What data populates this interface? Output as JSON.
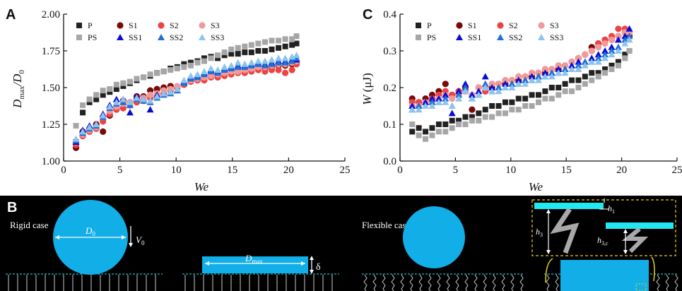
{
  "panels": {
    "a": "A",
    "b": "B",
    "c": "C"
  },
  "colors": {
    "P": "#222222",
    "PS": "#a6a6a6",
    "S1": "#7a0a0a",
    "S2": "#ec4444",
    "S3": "#f29a9a",
    "SS1": "#0a0ad6",
    "SS2": "#1e6fd6",
    "SS3": "#8cc4ef",
    "drop": "#12aee8",
    "plate": "#22e8f2",
    "spring": "#a8a8a8",
    "dash": "#e8d21a"
  },
  "chart_data": [
    {
      "id": "A",
      "type": "scatter",
      "xlabel": "We",
      "ylabel_main": "D",
      "ylabel_sub": "max",
      "ylabel_mid": "/D",
      "ylabel_sub2": "0",
      "xlim": [
        0,
        25
      ],
      "ylim": [
        1.0,
        2.0
      ],
      "xticks": [
        "0",
        "5",
        "10",
        "15",
        "20",
        "25"
      ],
      "yticks": [
        "1.00",
        "1.25",
        "1.50",
        "1.75",
        "2.00"
      ],
      "legend_layout": "2 rows x 4 columns, top-left",
      "legend": [
        {
          "key": "P",
          "marker": "square",
          "label": "P"
        },
        {
          "key": "S1",
          "marker": "circle",
          "label": "S1"
        },
        {
          "key": "S2",
          "marker": "circle",
          "label": "S2"
        },
        {
          "key": "S3",
          "marker": "circle",
          "label": "S3"
        },
        {
          "key": "PS",
          "marker": "square",
          "label": "PS"
        },
        {
          "key": "SS1",
          "marker": "triangle",
          "label": "SS1"
        },
        {
          "key": "SS2",
          "marker": "triangle",
          "label": "SS2"
        },
        {
          "key": "SS3",
          "marker": "triangle",
          "label": "SS3"
        }
      ],
      "x": [
        1.1,
        1.7,
        2.3,
        2.9,
        3.5,
        4.1,
        4.7,
        5.3,
        5.9,
        6.5,
        7.1,
        7.7,
        8.3,
        8.9,
        9.5,
        10.1,
        10.7,
        11.3,
        11.9,
        12.5,
        13.1,
        13.7,
        14.3,
        14.9,
        15.5,
        16.1,
        16.7,
        17.3,
        17.9,
        18.5,
        19.1,
        19.7,
        20.3,
        20.7
      ],
      "series": [
        {
          "key": "P",
          "marker": "square",
          "values": [
            1.13,
            1.33,
            1.4,
            1.42,
            1.45,
            1.47,
            1.49,
            1.51,
            1.53,
            1.55,
            1.57,
            1.58,
            1.6,
            1.61,
            1.63,
            1.64,
            1.66,
            1.67,
            1.68,
            1.7,
            1.71,
            1.7,
            1.72,
            1.73,
            1.73,
            1.74,
            1.74,
            1.75,
            1.75,
            1.76,
            1.77,
            1.78,
            1.79,
            1.8
          ]
        },
        {
          "key": "PS",
          "marker": "square",
          "values": [
            1.24,
            1.38,
            1.42,
            1.45,
            1.48,
            1.49,
            1.52,
            1.53,
            1.54,
            1.56,
            1.57,
            1.59,
            1.6,
            1.61,
            1.62,
            1.63,
            1.64,
            1.65,
            1.67,
            1.68,
            1.7,
            1.72,
            1.74,
            1.76,
            1.77,
            1.78,
            1.79,
            1.8,
            1.81,
            1.82,
            1.82,
            1.83,
            1.83,
            1.85
          ]
        },
        {
          "key": "S1",
          "marker": "circle",
          "values": [
            1.09,
            1.2,
            1.22,
            1.25,
            1.2,
            1.31,
            1.36,
            1.41,
            1.4,
            1.44,
            1.44,
            1.48,
            1.49,
            1.5,
            1.51,
            1.5,
            1.52,
            1.55,
            1.56,
            1.57,
            1.59,
            1.58,
            1.6,
            1.61,
            1.62,
            1.62,
            1.63,
            1.64,
            1.63,
            1.64,
            1.65,
            1.65,
            1.66,
            1.66
          ]
        },
        {
          "key": "S2",
          "marker": "circle",
          "values": [
            1.11,
            1.17,
            1.2,
            1.22,
            1.27,
            1.32,
            1.35,
            1.36,
            1.38,
            1.4,
            1.41,
            1.43,
            1.45,
            1.46,
            1.48,
            1.5,
            1.52,
            1.54,
            1.55,
            1.55,
            1.57,
            1.57,
            1.58,
            1.59,
            1.6,
            1.6,
            1.61,
            1.62,
            1.61,
            1.62,
            1.62,
            1.6,
            1.62,
            1.66
          ]
        },
        {
          "key": "S3",
          "marker": "circle",
          "values": [
            1.13,
            1.18,
            1.21,
            1.23,
            1.3,
            1.34,
            1.37,
            1.39,
            1.4,
            1.42,
            1.43,
            1.45,
            1.46,
            1.48,
            1.49,
            1.51,
            1.53,
            1.55,
            1.56,
            1.57,
            1.58,
            1.59,
            1.6,
            1.61,
            1.61,
            1.62,
            1.63,
            1.64,
            1.64,
            1.65,
            1.66,
            1.66,
            1.67,
            1.68
          ]
        },
        {
          "key": "SS1",
          "marker": "triangle",
          "values": [
            1.13,
            1.21,
            1.24,
            1.25,
            1.32,
            1.38,
            1.42,
            1.42,
            1.33,
            1.44,
            1.42,
            1.35,
            1.45,
            1.46,
            1.47,
            1.48,
            1.54,
            1.57,
            1.58,
            1.6,
            1.62,
            1.61,
            1.63,
            1.64,
            1.65,
            1.65,
            1.66,
            1.67,
            1.66,
            1.67,
            1.68,
            1.68,
            1.69,
            1.69
          ]
        },
        {
          "key": "SS2",
          "marker": "triangle",
          "values": [
            1.14,
            1.19,
            1.22,
            1.24,
            1.3,
            1.36,
            1.39,
            1.4,
            1.38,
            1.42,
            1.41,
            1.4,
            1.43,
            1.45,
            1.46,
            1.48,
            1.53,
            1.56,
            1.57,
            1.59,
            1.61,
            1.6,
            1.62,
            1.63,
            1.64,
            1.64,
            1.65,
            1.66,
            1.65,
            1.66,
            1.67,
            1.67,
            1.68,
            1.7
          ]
        },
        {
          "key": "SS3",
          "marker": "triangle",
          "values": [
            1.15,
            1.2,
            1.23,
            1.25,
            1.31,
            1.37,
            1.4,
            1.42,
            1.4,
            1.43,
            1.42,
            1.41,
            1.44,
            1.46,
            1.47,
            1.49,
            1.55,
            1.58,
            1.59,
            1.61,
            1.63,
            1.62,
            1.64,
            1.65,
            1.67,
            1.66,
            1.67,
            1.68,
            1.68,
            1.69,
            1.7,
            1.7,
            1.71,
            1.72
          ]
        }
      ]
    },
    {
      "id": "C",
      "type": "scatter",
      "xlabel": "We",
      "ylabel_main": "W",
      "ylabel_unit": " (μJ)",
      "xlim": [
        0,
        25
      ],
      "ylim": [
        0.0,
        0.4
      ],
      "xticks": [
        "0",
        "5",
        "10",
        "15",
        "20",
        "25"
      ],
      "yticks": [
        "0.0",
        "0.1",
        "0.2",
        "0.3",
        "0.4"
      ],
      "legend_layout": "2 rows x 4 columns, top-left",
      "legend": [
        {
          "key": "P",
          "marker": "square",
          "label": "P"
        },
        {
          "key": "S1",
          "marker": "circle",
          "label": "S1"
        },
        {
          "key": "S2",
          "marker": "circle",
          "label": "S2"
        },
        {
          "key": "S3",
          "marker": "circle",
          "label": "S3"
        },
        {
          "key": "PS",
          "marker": "square",
          "label": "PS"
        },
        {
          "key": "SS1",
          "marker": "triangle",
          "label": "SS1"
        },
        {
          "key": "SS2",
          "marker": "triangle",
          "label": "SS2"
        },
        {
          "key": "SS3",
          "marker": "triangle",
          "label": "SS3"
        }
      ],
      "x": [
        1.1,
        1.7,
        2.3,
        2.9,
        3.5,
        4.1,
        4.7,
        5.3,
        5.9,
        6.5,
        7.1,
        7.7,
        8.3,
        8.9,
        9.5,
        10.1,
        10.7,
        11.3,
        11.9,
        12.5,
        13.1,
        13.7,
        14.3,
        14.9,
        15.5,
        16.1,
        16.7,
        17.3,
        17.9,
        18.5,
        19.1,
        19.7,
        20.3,
        20.7
      ],
      "series": [
        {
          "key": "P",
          "marker": "square",
          "values": [
            0.08,
            0.09,
            0.08,
            0.09,
            0.1,
            0.1,
            0.11,
            0.11,
            0.12,
            0.12,
            0.13,
            0.14,
            0.15,
            0.15,
            0.16,
            0.16,
            0.17,
            0.17,
            0.18,
            0.18,
            0.19,
            0.2,
            0.2,
            0.21,
            0.22,
            0.22,
            0.23,
            0.24,
            0.24,
            0.25,
            0.26,
            0.27,
            0.29,
            0.3
          ]
        },
        {
          "key": "PS",
          "marker": "square",
          "values": [
            0.1,
            0.07,
            0.06,
            0.07,
            0.08,
            0.08,
            0.09,
            0.1,
            0.1,
            0.11,
            0.11,
            0.12,
            0.12,
            0.13,
            0.13,
            0.14,
            0.14,
            0.15,
            0.15,
            0.16,
            0.17,
            0.17,
            0.18,
            0.19,
            0.19,
            0.2,
            0.21,
            0.22,
            0.23,
            0.24,
            0.25,
            0.26,
            0.28,
            0.3
          ]
        },
        {
          "key": "S1",
          "marker": "circle",
          "values": [
            0.17,
            0.16,
            0.17,
            0.18,
            0.19,
            0.21,
            0.18,
            0.19,
            0.2,
            0.14,
            0.2,
            0.19,
            0.2,
            0.21,
            0.21,
            0.22,
            0.22,
            0.23,
            0.23,
            0.24,
            0.24,
            0.25,
            0.25,
            0.26,
            0.27,
            0.28,
            0.29,
            0.31,
            0.32,
            0.33,
            0.33,
            0.34,
            0.35,
            0.34
          ]
        },
        {
          "key": "S2",
          "marker": "circle",
          "values": [
            0.16,
            0.16,
            0.16,
            0.17,
            0.18,
            0.19,
            0.18,
            0.19,
            0.19,
            0.18,
            0.2,
            0.19,
            0.21,
            0.21,
            0.22,
            0.22,
            0.23,
            0.23,
            0.24,
            0.24,
            0.25,
            0.25,
            0.26,
            0.26,
            0.27,
            0.28,
            0.29,
            0.3,
            0.32,
            0.33,
            0.34,
            0.36,
            0.36,
            0.35
          ]
        },
        {
          "key": "S3",
          "marker": "circle",
          "values": [
            0.15,
            0.15,
            0.16,
            0.16,
            0.17,
            0.18,
            0.17,
            0.18,
            0.19,
            0.18,
            0.2,
            0.2,
            0.21,
            0.21,
            0.22,
            0.22,
            0.23,
            0.23,
            0.24,
            0.24,
            0.25,
            0.25,
            0.26,
            0.26,
            0.27,
            0.28,
            0.29,
            0.3,
            0.31,
            0.32,
            0.33,
            0.34,
            0.35,
            0.35
          ]
        },
        {
          "key": "SS1",
          "marker": "triangle",
          "values": [
            0.15,
            0.15,
            0.16,
            0.17,
            0.17,
            0.18,
            0.13,
            0.19,
            0.21,
            0.18,
            0.19,
            0.23,
            0.2,
            0.2,
            0.21,
            0.21,
            0.22,
            0.22,
            0.23,
            0.23,
            0.24,
            0.24,
            0.25,
            0.25,
            0.26,
            0.27,
            0.27,
            0.28,
            0.29,
            0.3,
            0.31,
            0.33,
            0.34,
            0.36
          ]
        },
        {
          "key": "SS2",
          "marker": "triangle",
          "values": [
            0.14,
            0.15,
            0.15,
            0.16,
            0.16,
            0.17,
            0.15,
            0.18,
            0.2,
            0.17,
            0.18,
            0.21,
            0.19,
            0.2,
            0.2,
            0.21,
            0.21,
            0.22,
            0.22,
            0.23,
            0.23,
            0.24,
            0.24,
            0.25,
            0.25,
            0.26,
            0.27,
            0.27,
            0.28,
            0.29,
            0.3,
            0.31,
            0.33,
            0.34
          ]
        },
        {
          "key": "SS3",
          "marker": "triangle",
          "values": [
            0.14,
            0.14,
            0.15,
            0.15,
            0.16,
            0.16,
            0.15,
            0.17,
            0.19,
            0.17,
            0.18,
            0.2,
            0.19,
            0.19,
            0.2,
            0.2,
            0.21,
            0.21,
            0.22,
            0.22,
            0.23,
            0.23,
            0.24,
            0.24,
            0.25,
            0.25,
            0.26,
            0.27,
            0.27,
            0.28,
            0.29,
            0.3,
            0.32,
            0.33
          ]
        }
      ]
    }
  ],
  "schematic": {
    "rigid_label": "Rigid case",
    "flexible_label": "Flexible case",
    "d0_main": "D",
    "d0_sub": "0",
    "v0_main": "V",
    "v0_sub": "0",
    "dmax_main": "D",
    "dmax_sub": "max",
    "delta": "δ",
    "h1_main": "h",
    "h1_sub": "1",
    "h3_main": "h",
    "h3_sub": "3",
    "h3c_main": "h",
    "h3c_sub": "3,c"
  }
}
